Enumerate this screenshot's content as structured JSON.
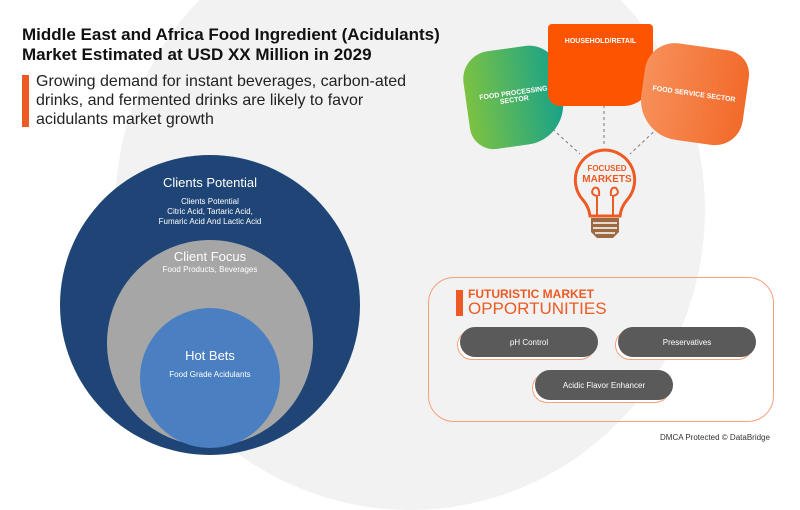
{
  "title": "Middle East and Africa Food Ingredient (Acidulants) Market Estimated at USD XX Million in 2029",
  "subtitle": "Growing demand for instant beverages, carbon-ated drinks, and fermented drinks are likely to favor acidulants market growth",
  "circles": {
    "outer": {
      "heading": "Clients Potential",
      "detail1": "Clients Potential",
      "detail2": "Citric Acid, Tartaric Acid,",
      "detail3": "Fumaric Acid And Lactic Acid"
    },
    "middle": {
      "heading": "Client Focus",
      "detail": "Food Products, Beverages"
    },
    "inner": {
      "heading": "Hot Bets",
      "detail": "Food Grade Acidulants"
    }
  },
  "markets": {
    "center_line1": "FOCUSED",
    "center_line2": "MARKETS",
    "items": [
      "FOOD PROCESSING SECTOR",
      "HOUSEHOLD/RETAIL",
      "FOOD SERVICE SECTOR"
    ]
  },
  "opportunities": {
    "title_line1": "FUTURISTIC MARKET",
    "title_line2": "OPPORTUNITIES",
    "items": [
      "pH Control",
      "Preservatives",
      "Acidic Flavor Enhancer"
    ]
  },
  "footer": "DMCA Protected © DataBridge",
  "colors": {
    "accent": "#ee5a24",
    "outer_circle": "#1f4576",
    "middle_circle": "#a6a6a6",
    "inner_circle": "#4a7fc1",
    "pill": "#5a5a5a"
  }
}
